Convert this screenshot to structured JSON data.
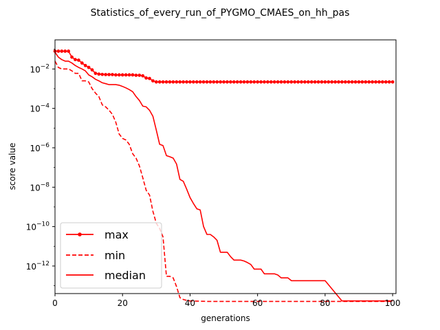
{
  "chart_data": {
    "type": "line",
    "title": "Statistics_of_every_run_of_PYGMO_CMAES_on_hh_pas",
    "xlabel": "generations",
    "ylabel": "score value",
    "xlim": [
      0,
      101
    ],
    "ylim": [
      4e-14,
      0.3
    ],
    "yscale": "log",
    "x_ticks": [
      0,
      20,
      40,
      60,
      80,
      100
    ],
    "y_ticks": [
      {
        "base": "10",
        "exp": "-12",
        "value": 1e-12
      },
      {
        "base": "10",
        "exp": "-10",
        "value": 1e-10
      },
      {
        "base": "10",
        "exp": "-8",
        "value": 1e-08
      },
      {
        "base": "10",
        "exp": "-6",
        "value": 1e-06
      },
      {
        "base": "10",
        "exp": "-4",
        "value": 0.0001
      },
      {
        "base": "10",
        "exp": "-2",
        "value": 0.01
      }
    ],
    "grid": false,
    "legend_position": "lower-left",
    "series": [
      {
        "name": "max",
        "color": "#ff0000",
        "style": "solid-dots",
        "points": [
          [
            0,
            0.08
          ],
          [
            1,
            0.08
          ],
          [
            2,
            0.08
          ],
          [
            3,
            0.08
          ],
          [
            4,
            0.08
          ],
          [
            5,
            0.04
          ],
          [
            6,
            0.03
          ],
          [
            7,
            0.028
          ],
          [
            8,
            0.02
          ],
          [
            9,
            0.015
          ],
          [
            10,
            0.012
          ],
          [
            11,
            0.009
          ],
          [
            12,
            0.006
          ],
          [
            13,
            0.0055
          ],
          [
            14,
            0.0053
          ],
          [
            15,
            0.0052
          ],
          [
            16,
            0.0052
          ],
          [
            17,
            0.0052
          ],
          [
            18,
            0.005
          ],
          [
            19,
            0.005
          ],
          [
            20,
            0.005
          ],
          [
            21,
            0.005
          ],
          [
            22,
            0.005
          ],
          [
            23,
            0.005
          ],
          [
            24,
            0.0048
          ],
          [
            25,
            0.0048
          ],
          [
            26,
            0.0045
          ],
          [
            27,
            0.0035
          ],
          [
            28,
            0.0033
          ],
          [
            29,
            0.0025
          ],
          [
            30,
            0.0022
          ],
          [
            35,
            0.0022
          ],
          [
            40,
            0.0022
          ],
          [
            50,
            0.0022
          ],
          [
            60,
            0.0022
          ],
          [
            70,
            0.0022
          ],
          [
            80,
            0.0022
          ],
          [
            90,
            0.0022
          ],
          [
            100,
            0.0022
          ]
        ]
      },
      {
        "name": "min",
        "color": "#ff0000",
        "style": "dashed",
        "points": [
          [
            0,
            0.025
          ],
          [
            1,
            0.012
          ],
          [
            2,
            0.01
          ],
          [
            4,
            0.01
          ],
          [
            5,
            0.008
          ],
          [
            6,
            0.006
          ],
          [
            7,
            0.006
          ],
          [
            8,
            0.0025
          ],
          [
            9,
            0.0025
          ],
          [
            10,
            0.0022
          ],
          [
            11,
            0.001
          ],
          [
            12,
            0.0006
          ],
          [
            13,
            0.0004
          ],
          [
            14,
            0.00015
          ],
          [
            15,
            0.00012
          ],
          [
            16,
            8e-05
          ],
          [
            17,
            5e-05
          ],
          [
            18,
            2e-05
          ],
          [
            19,
            5e-06
          ],
          [
            20,
            3e-06
          ],
          [
            21,
            2.5e-06
          ],
          [
            22,
            1.5e-06
          ],
          [
            23,
            5e-07
          ],
          [
            24,
            3e-07
          ],
          [
            25,
            1.2e-07
          ],
          [
            26,
            3e-08
          ],
          [
            27,
            7e-09
          ],
          [
            28,
            4e-09
          ],
          [
            29,
            6e-10
          ],
          [
            30,
            1.5e-10
          ],
          [
            31,
            8e-11
          ],
          [
            32,
            3e-11
          ],
          [
            33,
            3e-13
          ],
          [
            34,
            3e-13
          ],
          [
            35,
            2.5e-13
          ],
          [
            36,
            9e-14
          ],
          [
            37,
            2.5e-14
          ],
          [
            38,
            2e-14
          ],
          [
            39,
            1.8e-14
          ],
          [
            40,
            1.7e-14
          ],
          [
            45,
            1.6e-14
          ],
          [
            50,
            1.6e-14
          ],
          [
            60,
            1.6e-14
          ],
          [
            70,
            1.6e-14
          ],
          [
            80,
            1.6e-14
          ],
          [
            90,
            1.6e-14
          ],
          [
            100,
            1.6e-14
          ]
        ]
      },
      {
        "name": "median",
        "color": "#ff0000",
        "style": "solid",
        "points": [
          [
            0,
            0.07
          ],
          [
            1,
            0.04
          ],
          [
            2,
            0.03
          ],
          [
            3,
            0.025
          ],
          [
            4,
            0.025
          ],
          [
            5,
            0.02
          ],
          [
            6,
            0.015
          ],
          [
            7,
            0.012
          ],
          [
            8,
            0.01
          ],
          [
            9,
            0.008
          ],
          [
            10,
            0.005
          ],
          [
            11,
            0.004
          ],
          [
            12,
            0.003
          ],
          [
            13,
            0.0025
          ],
          [
            14,
            0.002
          ],
          [
            15,
            0.0018
          ],
          [
            16,
            0.0016
          ],
          [
            17,
            0.0016
          ],
          [
            18,
            0.0016
          ],
          [
            19,
            0.0015
          ],
          [
            20,
            0.0013
          ],
          [
            21,
            0.0011
          ],
          [
            22,
            0.0009
          ],
          [
            23,
            0.0007
          ],
          [
            24,
            0.0004
          ],
          [
            25,
            0.00025
          ],
          [
            26,
            0.00013
          ],
          [
            27,
            0.00012
          ],
          [
            28,
            8e-05
          ],
          [
            29,
            4e-05
          ],
          [
            30,
            8e-06
          ],
          [
            31,
            1.5e-06
          ],
          [
            32,
            1.3e-06
          ],
          [
            33,
            4e-07
          ],
          [
            34,
            3.5e-07
          ],
          [
            35,
            3e-07
          ],
          [
            36,
            1.5e-07
          ],
          [
            37,
            2.5e-08
          ],
          [
            38,
            2e-08
          ],
          [
            39,
            8e-09
          ],
          [
            40,
            3e-09
          ],
          [
            41,
            1.5e-09
          ],
          [
            42,
            8e-10
          ],
          [
            43,
            7e-10
          ],
          [
            44,
            1e-10
          ],
          [
            45,
            4e-11
          ],
          [
            46,
            4e-11
          ],
          [
            47,
            3e-11
          ],
          [
            48,
            2e-11
          ],
          [
            49,
            5e-12
          ],
          [
            50,
            5e-12
          ],
          [
            51,
            5e-12
          ],
          [
            52,
            3e-12
          ],
          [
            53,
            2e-12
          ],
          [
            54,
            2e-12
          ],
          [
            55,
            2e-12
          ],
          [
            56,
            1.8e-12
          ],
          [
            57,
            1.5e-12
          ],
          [
            58,
            1.2e-12
          ],
          [
            59,
            7e-13
          ],
          [
            60,
            7e-13
          ],
          [
            61,
            7e-13
          ],
          [
            62,
            4e-13
          ],
          [
            63,
            4e-13
          ],
          [
            64,
            4e-13
          ],
          [
            65,
            4e-13
          ],
          [
            66,
            3.5e-13
          ],
          [
            67,
            2.5e-13
          ],
          [
            68,
            2.5e-13
          ],
          [
            69,
            2.5e-13
          ],
          [
            70,
            1.8e-13
          ],
          [
            71,
            1.8e-13
          ],
          [
            72,
            1.8e-13
          ],
          [
            75,
            1.8e-13
          ],
          [
            80,
            1.8e-13
          ],
          [
            85,
            1.7e-14
          ],
          [
            90,
            1.7e-14
          ],
          [
            95,
            1.7e-14
          ],
          [
            100,
            1.7e-14
          ]
        ]
      }
    ]
  }
}
